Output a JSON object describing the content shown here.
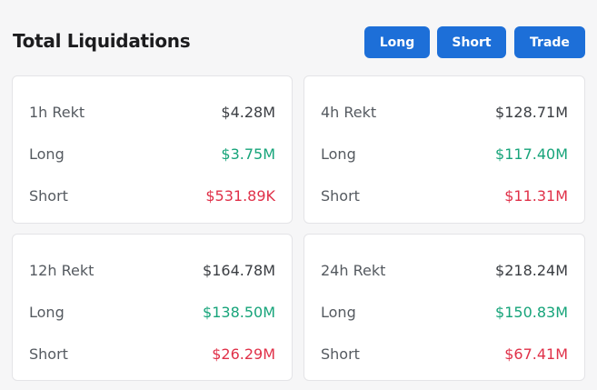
{
  "header": {
    "title": "Total Liquidations",
    "buttons": [
      "Long",
      "Short",
      "Trade"
    ]
  },
  "cards": [
    {
      "rows": [
        {
          "label": "1h Rekt",
          "value": "$4.28M"
        },
        {
          "label": "Long",
          "value": "$3.75M"
        },
        {
          "label": "Short",
          "value": "$531.89K"
        }
      ]
    },
    {
      "rows": [
        {
          "label": "4h Rekt",
          "value": "$128.71M"
        },
        {
          "label": "Long",
          "value": "$117.40M"
        },
        {
          "label": "Short",
          "value": "$11.31M"
        }
      ]
    },
    {
      "rows": [
        {
          "label": "12h Rekt",
          "value": "$164.78M"
        },
        {
          "label": "Long",
          "value": "$138.50M"
        },
        {
          "label": "Short",
          "value": "$26.29M"
        }
      ]
    },
    {
      "rows": [
        {
          "label": "24h Rekt",
          "value": "$218.24M"
        },
        {
          "label": "Long",
          "value": "$150.83M"
        },
        {
          "label": "Short",
          "value": "$67.41M"
        }
      ]
    }
  ]
}
